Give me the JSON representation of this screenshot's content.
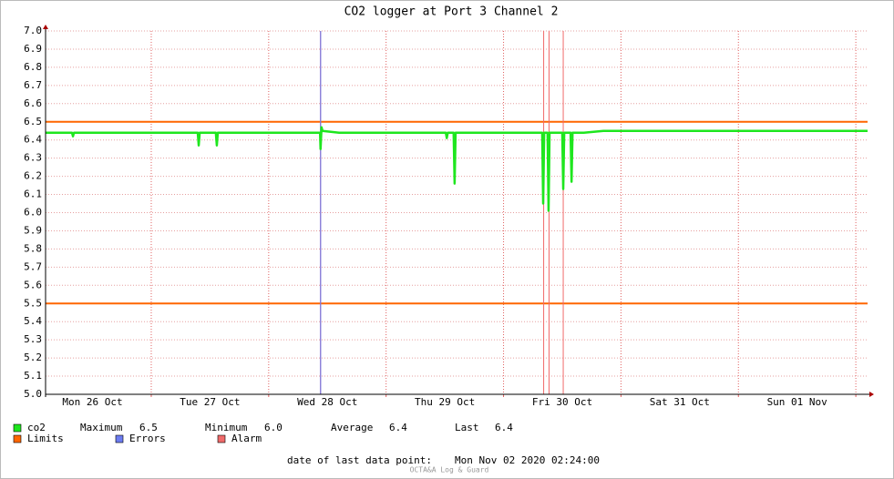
{
  "chart_data": {
    "type": "line",
    "title": "CO2 logger at Port 3 Channel 2",
    "x": [
      0,
      2,
      4,
      5.4,
      5.6,
      5.8,
      8,
      12,
      16,
      20,
      24,
      28,
      31.1,
      31.3,
      31.5,
      34.8,
      35,
      35.2,
      38,
      42,
      46,
      50,
      54,
      56.1,
      56.2,
      56.4,
      56.6,
      60,
      64,
      68,
      72,
      76,
      80,
      81.8,
      82,
      82.2,
      83.4,
      83.6,
      83.8,
      86,
      90,
      94,
      98,
      101.5,
      101.7,
      101.9,
      102.6,
      102.8,
      103.0,
      104,
      105.6,
      105.8,
      106,
      107.3,
      107.5,
      107.7,
      110,
      114,
      118,
      122,
      126,
      130,
      134,
      138,
      142,
      146,
      150,
      154,
      158,
      162,
      166,
      168
    ],
    "series": [
      {
        "name": "co2",
        "color": "#1ee61e",
        "values": [
          6.44,
          6.44,
          6.44,
          6.44,
          6.42,
          6.44,
          6.44,
          6.44,
          6.44,
          6.44,
          6.44,
          6.44,
          6.44,
          6.37,
          6.44,
          6.44,
          6.37,
          6.44,
          6.44,
          6.44,
          6.44,
          6.44,
          6.44,
          6.44,
          6.35,
          6.47,
          6.45,
          6.44,
          6.44,
          6.44,
          6.44,
          6.44,
          6.44,
          6.44,
          6.41,
          6.44,
          6.44,
          6.16,
          6.44,
          6.44,
          6.44,
          6.44,
          6.44,
          6.44,
          6.05,
          6.44,
          6.44,
          6.01,
          6.44,
          6.44,
          6.44,
          6.13,
          6.44,
          6.44,
          6.17,
          6.44,
          6.44,
          6.45,
          6.45,
          6.45,
          6.45,
          6.45,
          6.45,
          6.45,
          6.45,
          6.45,
          6.45,
          6.45,
          6.45,
          6.45,
          6.45,
          6.45
        ]
      }
    ],
    "xlim": [
      0,
      168
    ],
    "xticks": [
      {
        "value": 9.6,
        "label": "Mon 26 Oct"
      },
      {
        "value": 33.6,
        "label": "Tue 27 Oct"
      },
      {
        "value": 57.6,
        "label": "Wed 28 Oct"
      },
      {
        "value": 81.6,
        "label": "Thu 29 Oct"
      },
      {
        "value": 105.6,
        "label": "Fri 30 Oct"
      },
      {
        "value": 129.6,
        "label": "Sat 31 Oct"
      },
      {
        "value": 153.6,
        "label": "Sun 01 Nov"
      }
    ],
    "xgrid": [
      21.6,
      45.6,
      69.6,
      93.6,
      117.6,
      141.6,
      165.6
    ],
    "ylim": [
      5,
      7
    ],
    "yticks": [
      {
        "value": 5,
        "label": "5.0"
      },
      5.1,
      5.2,
      5.3,
      5.4,
      5.5,
      5.6,
      5.7,
      5.8,
      5.9,
      {
        "value": 6,
        "label": "6.0"
      },
      6.1,
      6.2,
      6.3,
      6.4,
      6.5,
      6.6,
      6.7,
      6.8,
      6.9,
      {
        "value": 7,
        "label": "7.0"
      }
    ],
    "grid": true,
    "limits": {
      "name": "Limits",
      "color": "#ff6600",
      "values": [
        6.5,
        5.5
      ]
    },
    "errors": {
      "name": "Errors",
      "color": "#6c7cf0",
      "x": [
        56.2
      ]
    },
    "alarms": {
      "name": "Alarm",
      "color": "#f06a6a",
      "x": [
        56.2,
        101.8,
        102.9,
        105.8
      ]
    },
    "stats": [
      {
        "name": "Maximum",
        "value": "6.5"
      },
      {
        "name": "Minimum",
        "value": "6.0"
      },
      {
        "name": "Average",
        "value": "6.4"
      },
      {
        "name": "Last",
        "value": "6.4"
      }
    ],
    "last_point_label": "date of last data point:",
    "last_point": "Mon Nov 02 2020 02:24:00",
    "footer": "OCTA&A Log & Guard"
  }
}
